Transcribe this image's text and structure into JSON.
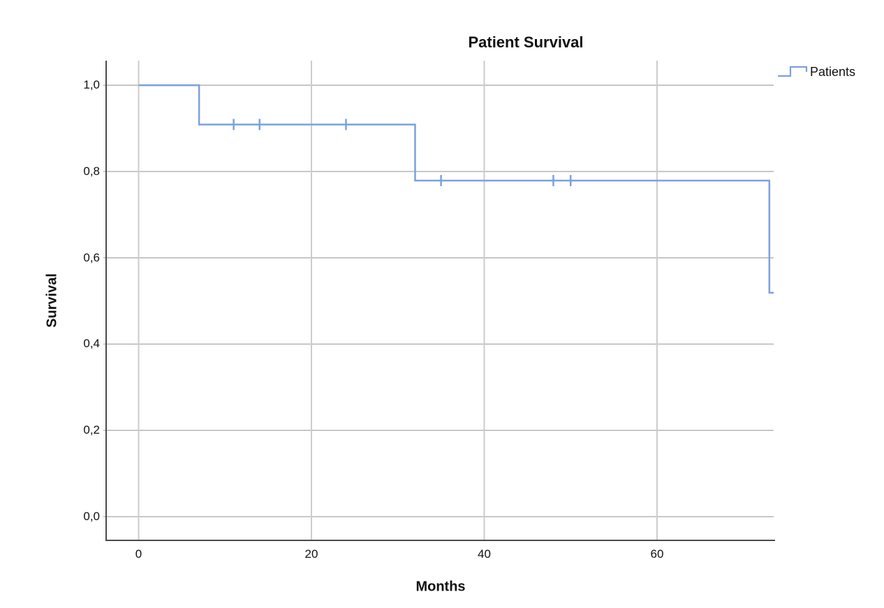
{
  "page": {
    "background": "#ffffff"
  },
  "chart_data": {
    "type": "line",
    "subtype": "kaplan-meier-step",
    "title": "Patient Survival",
    "xlabel": "Months",
    "ylabel": "Survival",
    "legend": {
      "position": "top-right",
      "entries": [
        {
          "label": "Patients",
          "color": "#7ba1dd",
          "symbol": "step-line"
        }
      ]
    },
    "x_ticks": [
      {
        "label": "0",
        "value": 0
      },
      {
        "label": "20",
        "value": 20
      },
      {
        "label": "40",
        "value": 40
      },
      {
        "label": "60",
        "value": 60
      }
    ],
    "y_ticks": [
      {
        "label": "0,0",
        "value": 0.0
      },
      {
        "label": "0,2",
        "value": 0.2
      },
      {
        "label": "0,4",
        "value": 0.4
      },
      {
        "label": "0,6",
        "value": 0.6
      },
      {
        "label": "0,8",
        "value": 0.8
      },
      {
        "label": "1,0",
        "value": 1.0
      }
    ],
    "xlim": [
      -3.76,
      73.5
    ],
    "ylim": [
      -0.055,
      1.057
    ],
    "grid": true,
    "decimal_separator": ",",
    "series": [
      {
        "name": "Patients",
        "color": "#7ba1dd",
        "step_points": [
          [
            0,
            1.0
          ],
          [
            7,
            1.0
          ],
          [
            7,
            0.909
          ],
          [
            32,
            0.909
          ],
          [
            32,
            0.779
          ],
          [
            73,
            0.779
          ],
          [
            73,
            0.519
          ],
          [
            73.5,
            0.519
          ]
        ],
        "censored_points": [
          [
            11,
            0.909
          ],
          [
            14,
            0.909
          ],
          [
            24,
            0.909
          ],
          [
            35,
            0.779
          ],
          [
            48,
            0.779
          ],
          [
            50,
            0.779
          ]
        ]
      }
    ],
    "colors": {
      "curve": "#7ba1dd",
      "grid_horizontal": "#b5b5b5",
      "grid_vertical": "#cccccc",
      "axis": "#4a4a4a",
      "text": "#111111"
    }
  }
}
